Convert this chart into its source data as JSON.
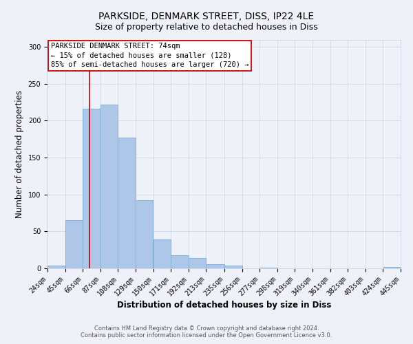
{
  "title": "PARKSIDE, DENMARK STREET, DISS, IP22 4LE",
  "subtitle": "Size of property relative to detached houses in Diss",
  "xlabel": "Distribution of detached houses by size in Diss",
  "ylabel": "Number of detached properties",
  "bar_color": "#aec6e8",
  "bar_edgecolor": "#7aadd4",
  "annotation_box_text": "PARKSIDE DENMARK STREET: 74sqm\n← 15% of detached houses are smaller (128)\n85% of semi-detached houses are larger (720) →",
  "annotation_box_color": "#ffffff",
  "annotation_box_edgecolor": "#cc0000",
  "vline_x": 74,
  "vline_color": "#cc0000",
  "footer_line1": "Contains HM Land Registry data © Crown copyright and database right 2024.",
  "footer_line2": "Contains public sector information licensed under the Open Government Licence v3.0.",
  "bin_edges": [
    24,
    45,
    66,
    87,
    108,
    129,
    150,
    171,
    192,
    213,
    235,
    256,
    277,
    298,
    319,
    340,
    361,
    382,
    403,
    424,
    445
  ],
  "bin_counts": [
    4,
    65,
    216,
    222,
    177,
    92,
    39,
    18,
    14,
    6,
    4,
    0,
    1,
    0,
    0,
    0,
    0,
    0,
    0,
    2
  ],
  "ylim": [
    0,
    310
  ],
  "yticks": [
    0,
    50,
    100,
    150,
    200,
    250,
    300
  ],
  "background_color": "#eef2f8",
  "grid_color": "#c8d4e8",
  "title_fontsize": 10,
  "subtitle_fontsize": 9,
  "axis_label_fontsize": 8.5,
  "tick_label_fontsize": 7,
  "annotation_fontsize": 7.5,
  "footer_fontsize": 6
}
